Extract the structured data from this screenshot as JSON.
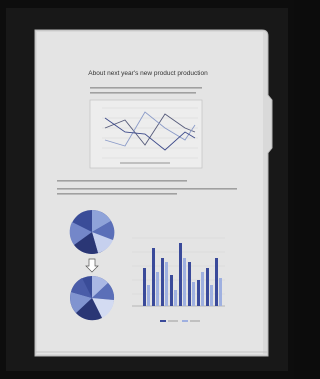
{
  "document": {
    "title": "About next year's new product production"
  }
}
